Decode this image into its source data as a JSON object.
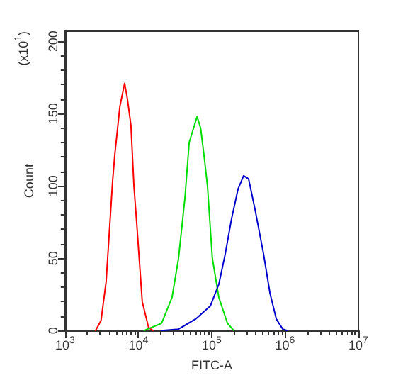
{
  "chart_data": {
    "type": "line",
    "xlabel": "FITC-A",
    "ylabel": "Count",
    "annotations": [
      "(x10$^{1}$)"
    ],
    "log": "x",
    "grid": false,
    "marker": "none",
    "line_style": "solid",
    "xlim": [
      1000,
      10000000
    ],
    "xticks": [
      {
        "value": 1000,
        "label": "10$^{3}$"
      },
      {
        "value": 10000,
        "label": "10$^{4}$"
      },
      {
        "value": 100000,
        "label": "10$^{5}$"
      },
      {
        "value": 1000000,
        "label": "10$^{6}$"
      },
      {
        "value": 10000000,
        "label": "10$^{7}$"
      }
    ],
    "ylim": [
      0,
      207
    ],
    "yticks": [
      0,
      50,
      100,
      150,
      200
    ],
    "series": [
      {
        "color": "#ff0000",
        "x": [
          2610,
          3100,
          3640,
          4450,
          4760,
          5600,
          6500,
          7100,
          7920,
          8700,
          9540,
          11300,
          13800,
          15800
        ],
        "values": [
          0,
          7,
          34,
          103,
          121,
          155,
          171,
          160,
          142,
          100,
          73,
          20,
          2,
          0
        ]
      },
      {
        "color": "#00dd00",
        "x": [
          12000,
          20700,
          28800,
          35300,
          43200,
          49300,
          63200,
          70600,
          78600,
          87600,
          102000,
          125000,
          164000,
          200000
        ],
        "values": [
          0,
          5,
          23,
          50,
          92,
          130,
          148,
          140,
          121,
          100,
          50,
          23,
          5,
          0
        ]
      },
      {
        "color": "#0000cc",
        "x": [
          20700,
          35300,
          60300,
          95800,
          125000,
          153000,
          186000,
          229000,
          272000,
          318000,
          389000,
          509000,
          622000,
          760000,
          930000,
          1070000
        ],
        "values": [
          0,
          1,
          8,
          17,
          32,
          53,
          77,
          98,
          107,
          105,
          84,
          53,
          26,
          8,
          1,
          0
        ]
      }
    ]
  }
}
